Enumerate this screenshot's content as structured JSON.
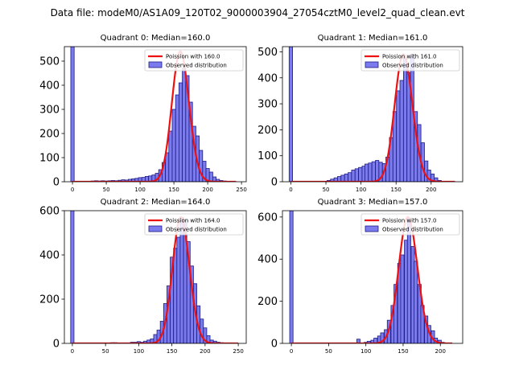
{
  "figure": {
    "suptitle": "Data file: modeM0/AS1A09_120T02_9000003904_27054cztM0_level2_quad_clean.evt"
  },
  "colors": {
    "bar_fill": "#7b7bee",
    "bar_edge": "#1c1c86",
    "poisson_line": "#ee1111",
    "axis": "#000000"
  },
  "chart_data": [
    {
      "type": "bar",
      "title": "Quadrant 0: Median=160.0",
      "legend_placement": "top-right",
      "legend": {
        "line": "Poission with 160.0",
        "bars": "Observed distribution"
      },
      "xlim": [
        -12,
        257
      ],
      "ylim": [
        0,
        560
      ],
      "xticks": [
        0,
        50,
        100,
        150,
        200,
        250
      ],
      "yticks": [
        0,
        100,
        200,
        300,
        400,
        500
      ],
      "bin_width": 5.0,
      "bins": [
        [
          0,
          560
        ],
        [
          30,
          3
        ],
        [
          35,
          4
        ],
        [
          40,
          3
        ],
        [
          45,
          4
        ],
        [
          50,
          3
        ],
        [
          55,
          4
        ],
        [
          60,
          5
        ],
        [
          65,
          4
        ],
        [
          70,
          6
        ],
        [
          75,
          8
        ],
        [
          80,
          7
        ],
        [
          85,
          10
        ],
        [
          90,
          12
        ],
        [
          95,
          14
        ],
        [
          100,
          17
        ],
        [
          105,
          18
        ],
        [
          110,
          22
        ],
        [
          115,
          24
        ],
        [
          120,
          28
        ],
        [
          125,
          35
        ],
        [
          130,
          50
        ],
        [
          135,
          80
        ],
        [
          140,
          120
        ],
        [
          145,
          210
        ],
        [
          150,
          300
        ],
        [
          155,
          360
        ],
        [
          160,
          410
        ],
        [
          165,
          470
        ],
        [
          170,
          440
        ],
        [
          175,
          330
        ],
        [
          180,
          230
        ],
        [
          185,
          190
        ],
        [
          190,
          130
        ],
        [
          195,
          85
        ],
        [
          200,
          55
        ],
        [
          205,
          40
        ],
        [
          210,
          20
        ],
        [
          215,
          10
        ],
        [
          220,
          5
        ],
        [
          225,
          3
        ]
      ],
      "poisson": {
        "mean": 160.0,
        "peak": 540,
        "x_start": 0,
        "x_end": 242
      }
    },
    {
      "type": "bar",
      "title": "Quadrant 1: Median=161.0",
      "legend_placement": "top-right",
      "legend": {
        "line": "Poission with 161.0",
        "bars": "Observed distribution"
      },
      "xlim": [
        -12,
        245
      ],
      "ylim": [
        0,
        520
      ],
      "xticks": [
        0,
        50,
        100,
        150,
        200
      ],
      "yticks": [
        0,
        100,
        200,
        300,
        400,
        500
      ],
      "bin_width": 4.93,
      "bins": [
        [
          0,
          520
        ],
        [
          54,
          5
        ],
        [
          59,
          10
        ],
        [
          64,
          15
        ],
        [
          69,
          20
        ],
        [
          74,
          25
        ],
        [
          79,
          30
        ],
        [
          84,
          35
        ],
        [
          89,
          45
        ],
        [
          94,
          50
        ],
        [
          99,
          55
        ],
        [
          104,
          60
        ],
        [
          108,
          68
        ],
        [
          113,
          72
        ],
        [
          118,
          77
        ],
        [
          123,
          82
        ],
        [
          128,
          75
        ],
        [
          133,
          70
        ],
        [
          138,
          95
        ],
        [
          143,
          170
        ],
        [
          148,
          270
        ],
        [
          153,
          350
        ],
        [
          158,
          390
        ],
        [
          163,
          480
        ],
        [
          168,
          420
        ],
        [
          173,
          490
        ],
        [
          178,
          270
        ],
        [
          183,
          220
        ],
        [
          188,
          150
        ],
        [
          193,
          80
        ],
        [
          197,
          45
        ],
        [
          202,
          30
        ],
        [
          207,
          15
        ],
        [
          212,
          5
        ]
      ],
      "poisson": {
        "mean": 161.0,
        "peak": 490,
        "x_start": 0,
        "x_end": 234
      }
    },
    {
      "type": "bar",
      "title": "Quadrant 2: Median=164.0",
      "legend_placement": "top-right",
      "legend": {
        "line": "Poission with 164.0",
        "bars": "Observed distribution"
      },
      "xlim": [
        -12,
        262
      ],
      "ylim": [
        0,
        600
      ],
      "xticks": [
        0,
        50,
        100,
        150,
        200,
        250
      ],
      "yticks": [
        0,
        200,
        400,
        600
      ],
      "bin_width": 5.0,
      "bins": [
        [
          0,
          600
        ],
        [
          60,
          3
        ],
        [
          65,
          3
        ],
        [
          90,
          5
        ],
        [
          95,
          5
        ],
        [
          100,
          8
        ],
        [
          105,
          5
        ],
        [
          110,
          10
        ],
        [
          115,
          15
        ],
        [
          120,
          20
        ],
        [
          125,
          40
        ],
        [
          130,
          60
        ],
        [
          135,
          100
        ],
        [
          140,
          180
        ],
        [
          145,
          260
        ],
        [
          150,
          390
        ],
        [
          155,
          430
        ],
        [
          160,
          480
        ],
        [
          165,
          570
        ],
        [
          170,
          560
        ],
        [
          175,
          460
        ],
        [
          180,
          350
        ],
        [
          185,
          270
        ],
        [
          190,
          170
        ],
        [
          195,
          110
        ],
        [
          200,
          70
        ],
        [
          205,
          35
        ],
        [
          210,
          15
        ],
        [
          215,
          10
        ],
        [
          220,
          5
        ],
        [
          225,
          3
        ]
      ],
      "poisson": {
        "mean": 164.0,
        "peak": 570,
        "x_start": 0,
        "x_end": 250
      }
    },
    {
      "type": "bar",
      "title": "Quadrant 3: Median=157.0",
      "legend_placement": "top-right",
      "legend": {
        "line": "Poission with 157.0",
        "bars": "Observed distribution"
      },
      "xlim": [
        -12,
        230
      ],
      "ylim": [
        0,
        630
      ],
      "xticks": [
        0,
        50,
        100,
        150,
        200
      ],
      "yticks": [
        0,
        200,
        400,
        600
      ],
      "bin_width": 4.5,
      "bins": [
        [
          0,
          630
        ],
        [
          90,
          20
        ],
        [
          100,
          5
        ],
        [
          104,
          10
        ],
        [
          109,
          15
        ],
        [
          113,
          25
        ],
        [
          118,
          35
        ],
        [
          122,
          50
        ],
        [
          127,
          65
        ],
        [
          131,
          110
        ],
        [
          136,
          180
        ],
        [
          140,
          280
        ],
        [
          145,
          380
        ],
        [
          149,
          420
        ],
        [
          154,
          490
        ],
        [
          158,
          595
        ],
        [
          163,
          460
        ],
        [
          167,
          390
        ],
        [
          172,
          280
        ],
        [
          176,
          180
        ],
        [
          181,
          130
        ],
        [
          185,
          85
        ],
        [
          190,
          60
        ],
        [
          194,
          25
        ],
        [
          199,
          15
        ],
        [
          203,
          5
        ]
      ],
      "poisson": {
        "mean": 157.0,
        "peak": 600,
        "x_start": 0,
        "x_end": 216
      }
    }
  ]
}
